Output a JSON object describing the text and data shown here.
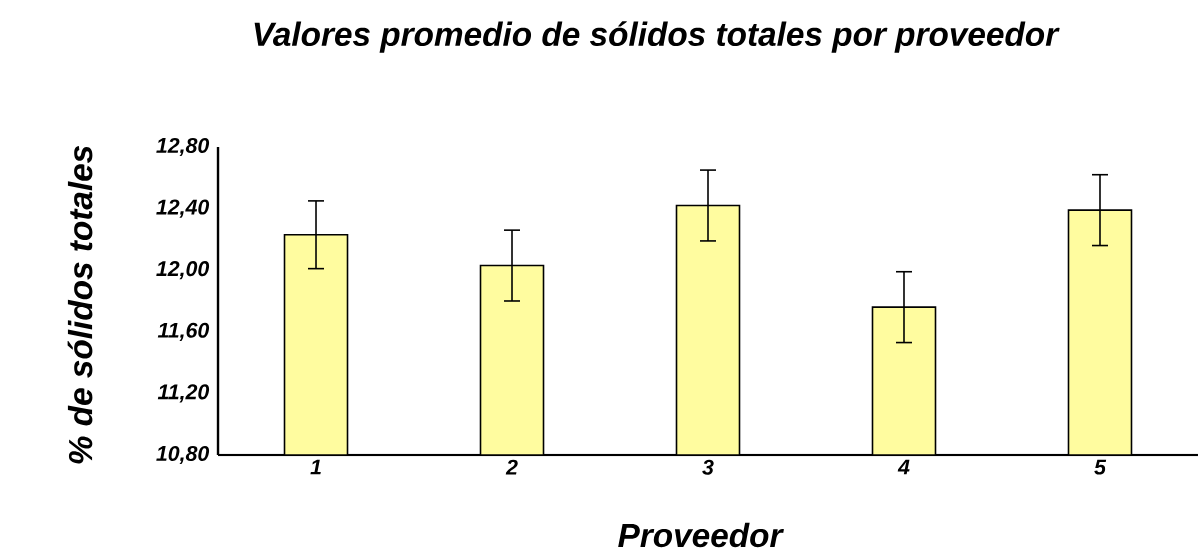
{
  "chart_data": {
    "type": "bar",
    "title": "Valores promedio de sólidos totales por proveedor",
    "xlabel": "Proveedor",
    "ylabel": "% de sólidos totales",
    "categories": [
      "1",
      "2",
      "3",
      "4",
      "5"
    ],
    "values": [
      12.23,
      12.03,
      12.42,
      11.76,
      12.39
    ],
    "errors": [
      0.22,
      0.23,
      0.23,
      0.23,
      0.23
    ],
    "color": "#fffc9f",
    "ylim": [
      10.8,
      12.8
    ],
    "yticks": [
      {
        "value": 10.8,
        "label": "10,80"
      },
      {
        "value": 11.2,
        "label": "11,20"
      },
      {
        "value": 11.6,
        "label": "11,60"
      },
      {
        "value": 12.0,
        "label": "12,00"
      },
      {
        "value": 12.4,
        "label": "12,40"
      },
      {
        "value": 12.8,
        "label": "12,80"
      }
    ]
  }
}
